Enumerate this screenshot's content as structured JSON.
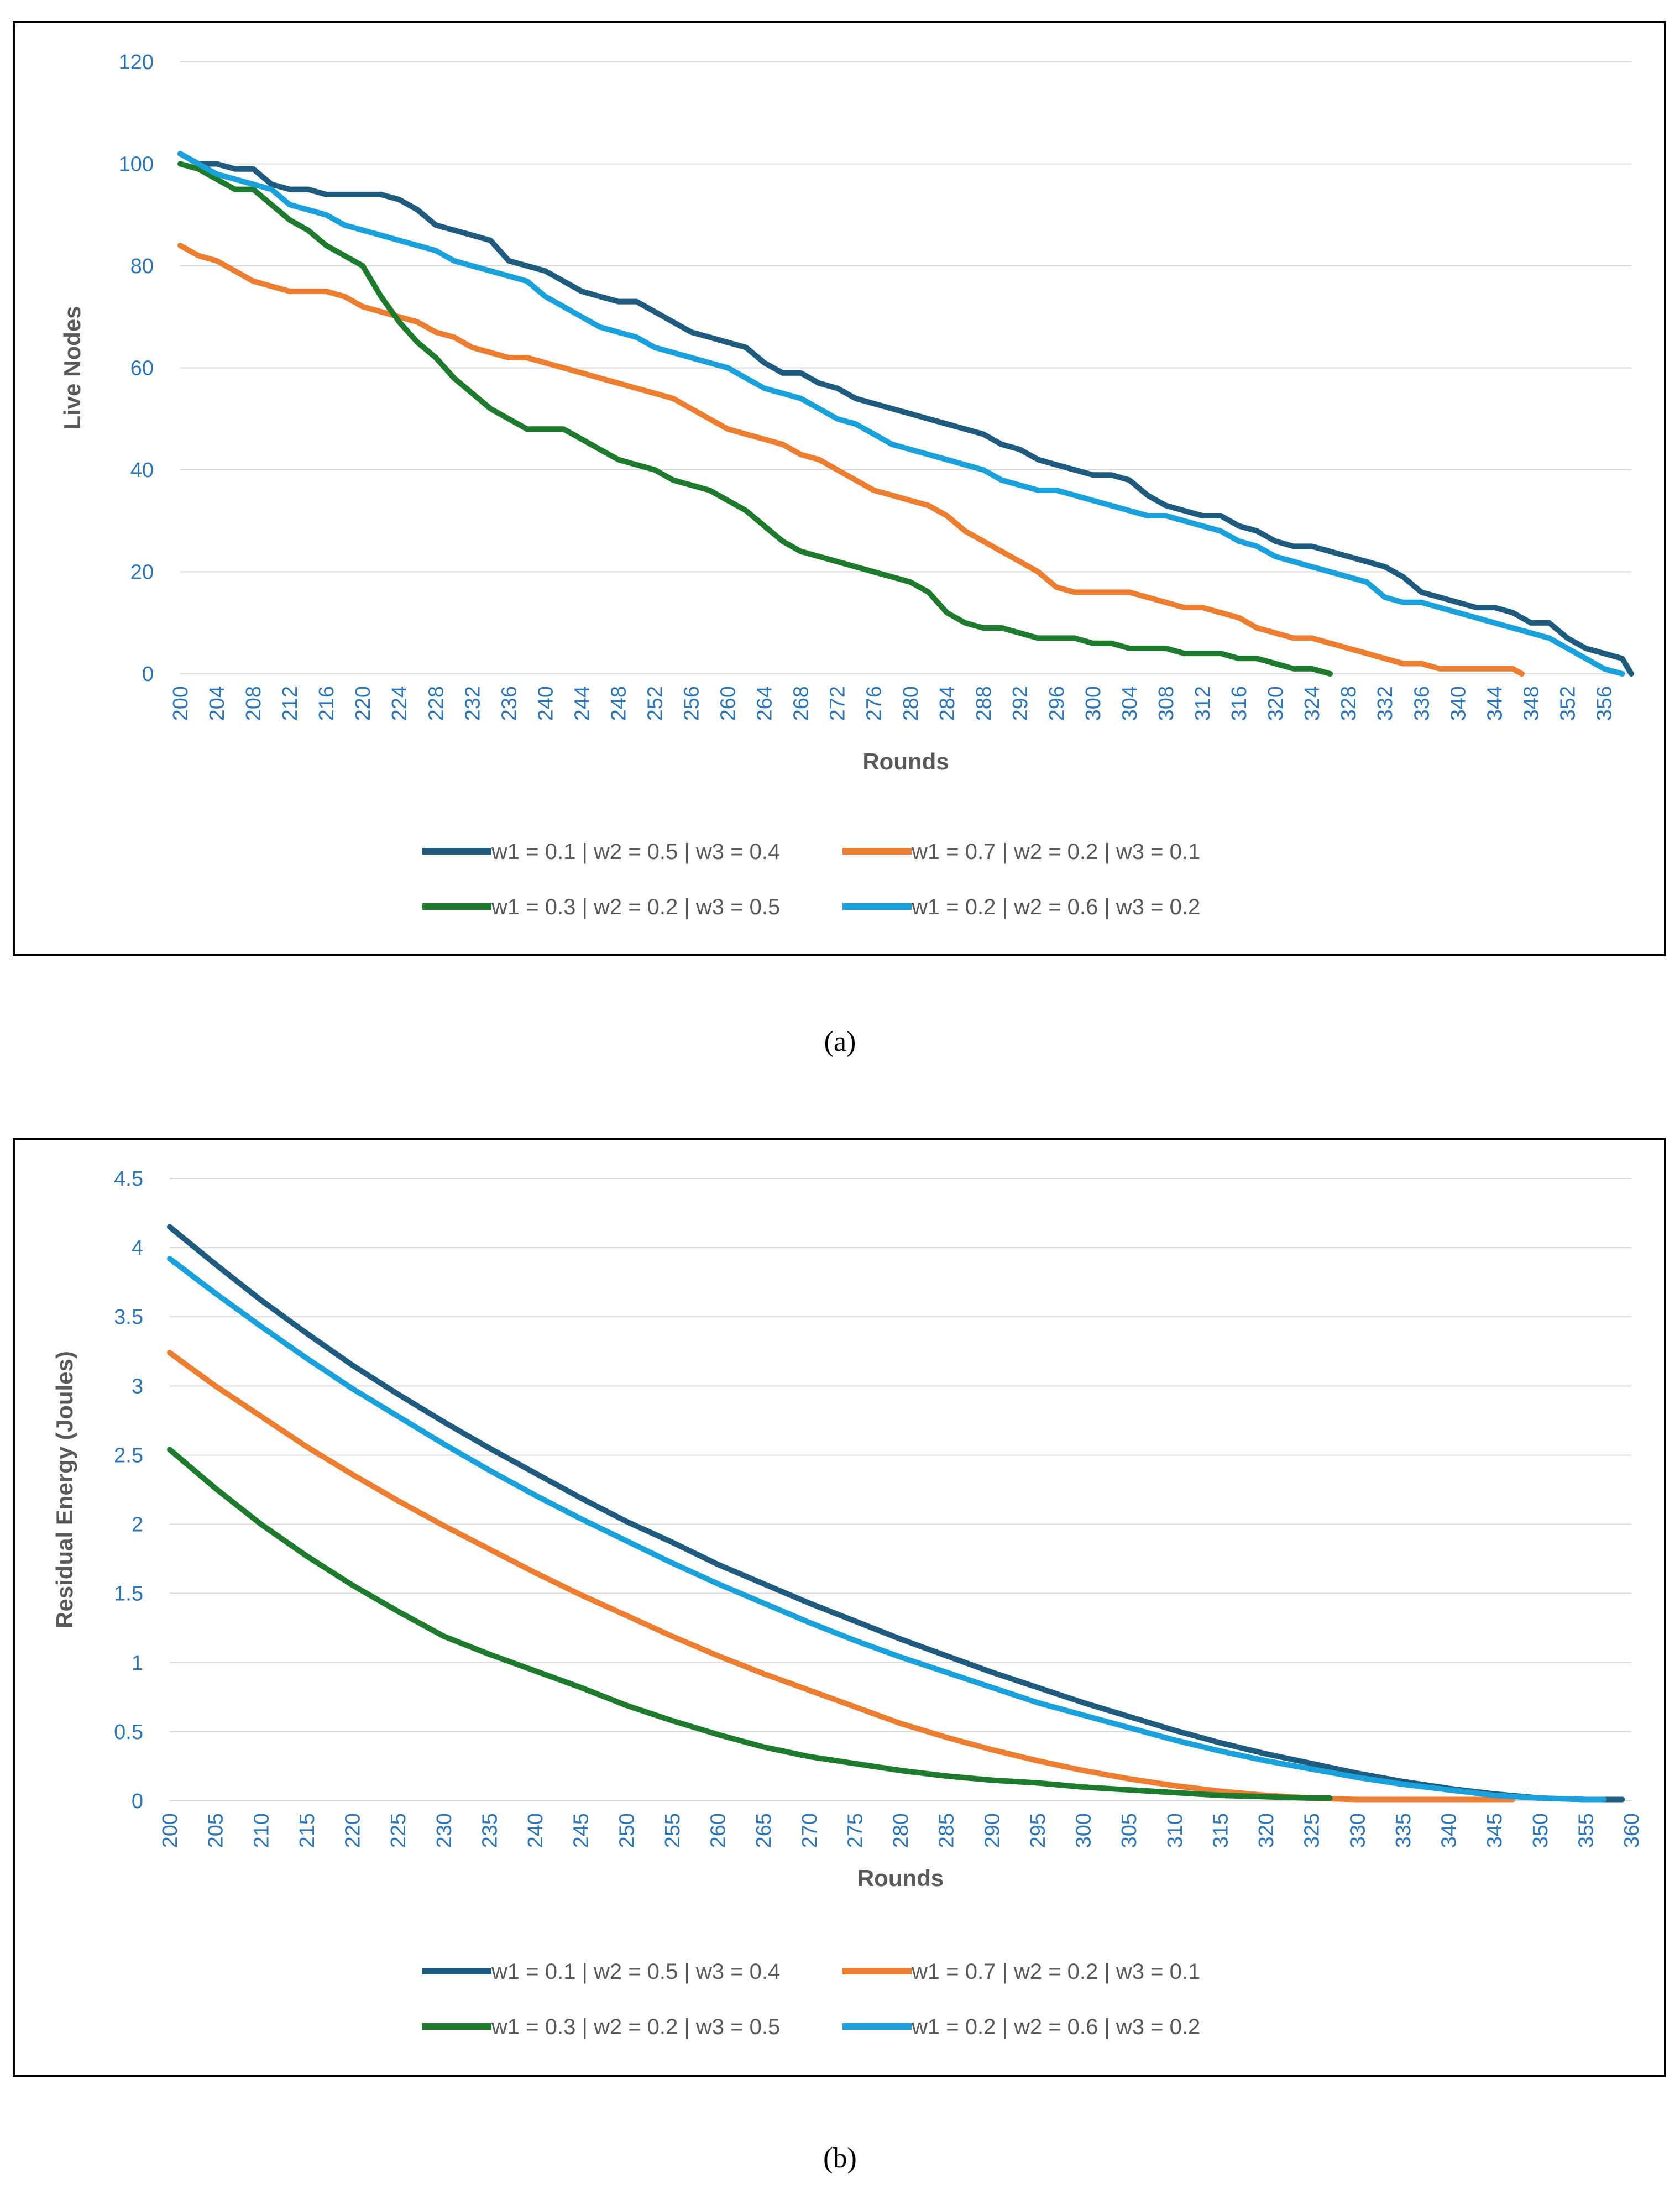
{
  "chart_data": [
    {
      "type": "line",
      "panel_label": "(a)",
      "ylabel": "Live Nodes",
      "xlabel": "Rounds",
      "ylim": [
        0,
        120
      ],
      "yticks": [
        0,
        20,
        40,
        60,
        80,
        100,
        120
      ],
      "xlim": [
        200,
        359
      ],
      "xticks": [
        200,
        204,
        208,
        212,
        216,
        220,
        224,
        228,
        232,
        236,
        240,
        244,
        248,
        252,
        256,
        260,
        264,
        268,
        272,
        276,
        280,
        284,
        288,
        292,
        296,
        300,
        304,
        308,
        312,
        316,
        320,
        324,
        328,
        332,
        336,
        340,
        344,
        348,
        352,
        356
      ],
      "grid": true,
      "legend_position": "bottom",
      "series": [
        {
          "name": "w1 = 0.1 | w2 = 0.5 | w3 = 0.4",
          "color": "#1f5b7f",
          "x": [
            200,
            202,
            204,
            206,
            208,
            210,
            212,
            214,
            216,
            218,
            220,
            222,
            224,
            226,
            228,
            230,
            232,
            234,
            236,
            238,
            240,
            242,
            244,
            246,
            248,
            250,
            252,
            254,
            256,
            258,
            260,
            262,
            264,
            266,
            268,
            270,
            272,
            274,
            276,
            278,
            280,
            282,
            284,
            286,
            288,
            290,
            292,
            294,
            296,
            298,
            300,
            302,
            304,
            306,
            308,
            310,
            312,
            314,
            316,
            318,
            320,
            322,
            324,
            326,
            328,
            330,
            332,
            334,
            336,
            338,
            340,
            342,
            344,
            346,
            348,
            350,
            352,
            354,
            356,
            358,
            359
          ],
          "y": [
            102,
            100,
            100,
            99,
            99,
            96,
            95,
            95,
            94,
            94,
            94,
            94,
            93,
            91,
            88,
            87,
            86,
            85,
            81,
            80,
            79,
            77,
            75,
            74,
            73,
            73,
            71,
            69,
            67,
            66,
            65,
            64,
            61,
            59,
            59,
            57,
            56,
            54,
            53,
            52,
            51,
            50,
            49,
            48,
            47,
            45,
            44,
            42,
            41,
            40,
            39,
            39,
            38,
            35,
            33,
            32,
            31,
            31,
            29,
            28,
            26,
            25,
            25,
            24,
            23,
            22,
            21,
            19,
            16,
            15,
            14,
            13,
            13,
            12,
            10,
            10,
            7,
            5,
            4,
            3,
            0
          ]
        },
        {
          "name": "w1 = 0.7 | w2 = 0.2 | w3 = 0.1",
          "color": "#ed7d31",
          "x": [
            200,
            202,
            204,
            206,
            208,
            210,
            212,
            214,
            216,
            218,
            220,
            222,
            224,
            226,
            228,
            230,
            232,
            234,
            236,
            238,
            240,
            242,
            244,
            246,
            248,
            250,
            252,
            254,
            256,
            258,
            260,
            262,
            264,
            266,
            268,
            270,
            272,
            274,
            276,
            278,
            280,
            282,
            284,
            286,
            288,
            290,
            292,
            294,
            296,
            298,
            300,
            302,
            304,
            306,
            308,
            310,
            312,
            314,
            316,
            318,
            320,
            322,
            324,
            326,
            328,
            330,
            332,
            334,
            336,
            338,
            340,
            342,
            344,
            346,
            347
          ],
          "y": [
            84,
            82,
            81,
            79,
            77,
            76,
            75,
            75,
            75,
            74,
            72,
            71,
            70,
            69,
            67,
            66,
            64,
            63,
            62,
            62,
            61,
            60,
            59,
            58,
            57,
            56,
            55,
            54,
            52,
            50,
            48,
            47,
            46,
            45,
            43,
            42,
            40,
            38,
            36,
            35,
            34,
            33,
            31,
            28,
            26,
            24,
            22,
            20,
            17,
            16,
            16,
            16,
            16,
            15,
            14,
            13,
            13,
            12,
            11,
            9,
            8,
            7,
            7,
            6,
            5,
            4,
            3,
            2,
            2,
            1,
            1,
            1,
            1,
            1,
            0
          ]
        },
        {
          "name": "w1 = 0.3 | w2 = 0.2 | w3 = 0.5",
          "color": "#1e7b2e",
          "x": [
            200,
            202,
            204,
            206,
            208,
            210,
            212,
            214,
            216,
            218,
            220,
            222,
            224,
            226,
            228,
            230,
            232,
            234,
            236,
            238,
            240,
            242,
            244,
            246,
            248,
            250,
            252,
            254,
            256,
            258,
            260,
            262,
            264,
            266,
            268,
            270,
            272,
            274,
            276,
            278,
            280,
            282,
            284,
            286,
            288,
            290,
            292,
            294,
            296,
            298,
            300,
            302,
            304,
            306,
            308,
            310,
            312,
            314,
            316,
            318,
            320,
            322,
            324,
            326
          ],
          "y": [
            100,
            99,
            97,
            95,
            95,
            92,
            89,
            87,
            84,
            82,
            80,
            74,
            69,
            65,
            62,
            58,
            55,
            52,
            50,
            48,
            48,
            48,
            46,
            44,
            42,
            41,
            40,
            38,
            37,
            36,
            34,
            32,
            29,
            26,
            24,
            23,
            22,
            21,
            20,
            19,
            18,
            16,
            12,
            10,
            9,
            9,
            8,
            7,
            7,
            7,
            6,
            6,
            5,
            5,
            5,
            4,
            4,
            4,
            3,
            3,
            2,
            1,
            1,
            0
          ]
        },
        {
          "name": "w1 = 0.2 | w2 = 0.6 | w3 = 0.2",
          "color": "#1aa1dc",
          "x": [
            200,
            202,
            204,
            206,
            208,
            210,
            212,
            214,
            216,
            218,
            220,
            222,
            224,
            226,
            228,
            230,
            232,
            234,
            236,
            238,
            240,
            242,
            244,
            246,
            248,
            250,
            252,
            254,
            256,
            258,
            260,
            262,
            264,
            266,
            268,
            270,
            272,
            274,
            276,
            278,
            280,
            282,
            284,
            286,
            288,
            290,
            292,
            294,
            296,
            298,
            300,
            302,
            304,
            306,
            308,
            310,
            312,
            314,
            316,
            318,
            320,
            322,
            324,
            326,
            328,
            330,
            332,
            334,
            336,
            338,
            340,
            342,
            344,
            346,
            348,
            350,
            352,
            354,
            356,
            358
          ],
          "y": [
            102,
            100,
            98,
            97,
            96,
            95,
            92,
            91,
            90,
            88,
            87,
            86,
            85,
            84,
            83,
            81,
            80,
            79,
            78,
            77,
            74,
            72,
            70,
            68,
            67,
            66,
            64,
            63,
            62,
            61,
            60,
            58,
            56,
            55,
            54,
            52,
            50,
            49,
            47,
            45,
            44,
            43,
            42,
            41,
            40,
            38,
            37,
            36,
            36,
            35,
            34,
            33,
            32,
            31,
            31,
            30,
            29,
            28,
            26,
            25,
            23,
            22,
            21,
            20,
            19,
            18,
            15,
            14,
            14,
            13,
            12,
            11,
            10,
            9,
            8,
            7,
            5,
            3,
            1,
            0
          ]
        }
      ]
    },
    {
      "type": "line",
      "panel_label": "(b)",
      "ylabel": "Residual Energy (Joules)",
      "xlabel": "Rounds",
      "ylim": [
        0,
        4.5
      ],
      "yticks": [
        0,
        0.5,
        1,
        1.5,
        2,
        2.5,
        3,
        3.5,
        4,
        4.5
      ],
      "xlim": [
        200,
        360
      ],
      "xticks": [
        200,
        205,
        210,
        215,
        220,
        225,
        230,
        235,
        240,
        245,
        250,
        255,
        260,
        265,
        270,
        275,
        280,
        285,
        290,
        295,
        300,
        305,
        310,
        315,
        320,
        325,
        330,
        335,
        340,
        345,
        350,
        355,
        360
      ],
      "grid": true,
      "legend_position": "bottom",
      "series": [
        {
          "name": "w1 = 0.1 | w2 = 0.5 | w3 = 0.4",
          "color": "#1f5b7f",
          "x": [
            200,
            205,
            210,
            215,
            220,
            225,
            230,
            235,
            240,
            245,
            250,
            255,
            260,
            265,
            270,
            275,
            280,
            285,
            290,
            295,
            300,
            305,
            310,
            315,
            320,
            325,
            330,
            335,
            340,
            345,
            350,
            355,
            359
          ],
          "y": [
            4.15,
            3.88,
            3.62,
            3.38,
            3.15,
            2.94,
            2.74,
            2.55,
            2.37,
            2.19,
            2.02,
            1.87,
            1.71,
            1.57,
            1.43,
            1.3,
            1.17,
            1.05,
            0.93,
            0.82,
            0.71,
            0.61,
            0.51,
            0.42,
            0.34,
            0.27,
            0.2,
            0.14,
            0.09,
            0.05,
            0.02,
            0.01,
            0.01
          ]
        },
        {
          "name": "w1 = 0.7 | w2 = 0.2 | w3 = 0.1",
          "color": "#ed7d31",
          "x": [
            200,
            205,
            210,
            215,
            220,
            225,
            230,
            235,
            240,
            245,
            250,
            255,
            260,
            265,
            270,
            275,
            280,
            285,
            290,
            295,
            300,
            305,
            310,
            315,
            320,
            325,
            330,
            335,
            340,
            345,
            347
          ],
          "y": [
            3.24,
            3.0,
            2.78,
            2.56,
            2.36,
            2.17,
            1.99,
            1.82,
            1.65,
            1.49,
            1.34,
            1.19,
            1.05,
            0.92,
            0.8,
            0.68,
            0.56,
            0.46,
            0.37,
            0.29,
            0.22,
            0.16,
            0.11,
            0.07,
            0.04,
            0.02,
            0.01,
            0.01,
            0.01,
            0.01,
            0.01
          ]
        },
        {
          "name": "w1 = 0.3 | w2 = 0.2 | w3 = 0.5",
          "color": "#1e7b2e",
          "x": [
            200,
            205,
            210,
            215,
            220,
            225,
            230,
            235,
            240,
            245,
            250,
            255,
            260,
            265,
            270,
            275,
            280,
            285,
            290,
            295,
            300,
            305,
            310,
            315,
            320,
            325,
            327
          ],
          "y": [
            2.54,
            2.26,
            2.0,
            1.77,
            1.56,
            1.37,
            1.19,
            1.06,
            0.94,
            0.82,
            0.69,
            0.58,
            0.48,
            0.39,
            0.32,
            0.27,
            0.22,
            0.18,
            0.15,
            0.13,
            0.1,
            0.08,
            0.06,
            0.04,
            0.03,
            0.02,
            0.02
          ]
        },
        {
          "name": "w1 = 0.2 | w2 = 0.6 | w3 = 0.2",
          "color": "#1aa1dc",
          "x": [
            200,
            205,
            210,
            215,
            220,
            225,
            230,
            235,
            240,
            245,
            250,
            255,
            260,
            265,
            270,
            275,
            280,
            285,
            290,
            295,
            300,
            305,
            310,
            315,
            320,
            325,
            330,
            335,
            340,
            345,
            350,
            355,
            357
          ],
          "y": [
            3.92,
            3.67,
            3.43,
            3.2,
            2.98,
            2.78,
            2.58,
            2.39,
            2.21,
            2.04,
            1.88,
            1.72,
            1.57,
            1.43,
            1.29,
            1.16,
            1.04,
            0.93,
            0.82,
            0.71,
            0.62,
            0.53,
            0.44,
            0.36,
            0.29,
            0.23,
            0.17,
            0.12,
            0.08,
            0.04,
            0.02,
            0.01,
            0.01
          ]
        }
      ]
    }
  ]
}
